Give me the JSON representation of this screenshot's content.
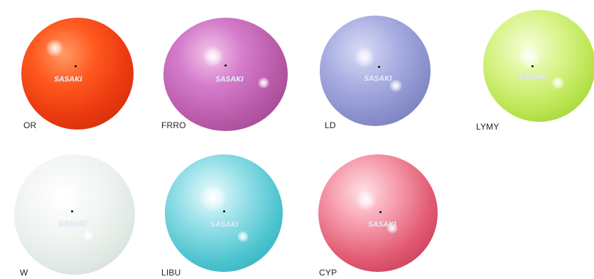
{
  "brand_mark": "SASAKI",
  "balls": [
    {
      "code": "OR",
      "color": "#ec3a10"
    },
    {
      "code": "FRRO",
      "color": "#b85aa8"
    },
    {
      "code": "LD",
      "color": "#8a90cc"
    },
    {
      "code": "LYMY",
      "color": "#b9e54f"
    },
    {
      "code": "W",
      "color": "#e6ece8"
    },
    {
      "code": "LIBU",
      "color": "#4cc4cf"
    },
    {
      "code": "CYP",
      "color": "#e25b73"
    }
  ]
}
